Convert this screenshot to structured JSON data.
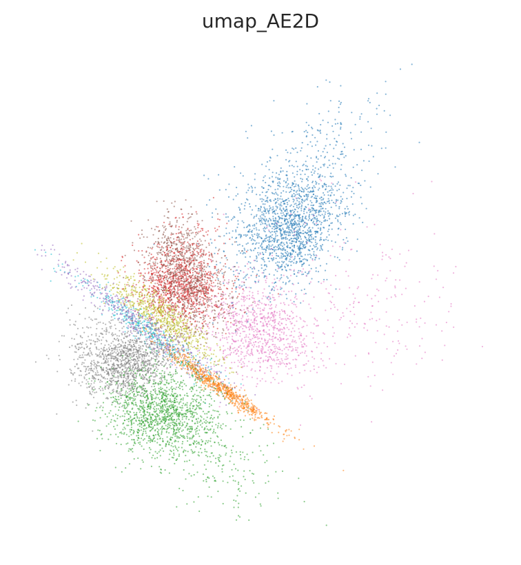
{
  "chart_data": {
    "type": "scatter",
    "title": "umap_AE2D",
    "xlabel": "",
    "ylabel": "",
    "axes_visible": false,
    "grid": false,
    "legend": "none",
    "point_alpha": 0.55,
    "series": [
      {
        "color": "#1f77b4",
        "clusters": [
          {
            "cx": 0.56,
            "cy": 0.35,
            "sx": 0.07,
            "sy": 0.05,
            "rot": -0.85,
            "n": 1500
          },
          {
            "cx": 0.6,
            "cy": 0.22,
            "sx": 0.11,
            "sy": 0.06,
            "rot": -0.7,
            "n": 260
          }
        ]
      },
      {
        "color": "#e377c2",
        "clusters": [
          {
            "cx": 0.49,
            "cy": 0.57,
            "sx": 0.06,
            "sy": 0.05,
            "rot": 0.6,
            "n": 900
          },
          {
            "cx": 0.72,
            "cy": 0.5,
            "sx": 0.12,
            "sy": 0.09,
            "rot": 0.3,
            "n": 240
          }
        ]
      },
      {
        "color": "#d62728",
        "clusters": [
          {
            "cx": 0.32,
            "cy": 0.48,
            "sx": 0.05,
            "sy": 0.035,
            "rot": 0.2,
            "n": 900
          },
          {
            "cx": 0.33,
            "cy": 0.42,
            "sx": 0.035,
            "sy": 0.05,
            "rot": 0.4,
            "n": 250
          }
        ]
      },
      {
        "color": "#8c564b",
        "clusters": [
          {
            "cx": 0.34,
            "cy": 0.47,
            "sx": 0.06,
            "sy": 0.04,
            "rot": 1.0,
            "n": 700
          },
          {
            "cx": 0.31,
            "cy": 0.38,
            "sx": 0.03,
            "sy": 0.04,
            "rot": 0.3,
            "n": 200
          }
        ]
      },
      {
        "color": "#bcbd22",
        "clusters": [
          {
            "cx": 0.28,
            "cy": 0.54,
            "sx": 0.075,
            "sy": 0.018,
            "rot": 0.65,
            "n": 700
          }
        ]
      },
      {
        "color": "#17becf",
        "clusters": [
          {
            "cx": 0.25,
            "cy": 0.57,
            "sx": 0.1,
            "sy": 0.012,
            "rot": 0.62,
            "n": 400
          }
        ]
      },
      {
        "color": "#9467bd",
        "clusters": [
          {
            "cx": 0.24,
            "cy": 0.56,
            "sx": 0.12,
            "sy": 0.014,
            "rot": 0.62,
            "n": 500
          }
        ]
      },
      {
        "color": "#7f7f7f",
        "clusters": [
          {
            "cx": 0.2,
            "cy": 0.64,
            "sx": 0.05,
            "sy": 0.035,
            "rot": -0.2,
            "n": 1100
          },
          {
            "cx": 0.15,
            "cy": 0.6,
            "sx": 0.05,
            "sy": 0.04,
            "rot": 0.0,
            "n": 200
          }
        ]
      },
      {
        "color": "#ff7f0e",
        "clusters": [
          {
            "cx": 0.41,
            "cy": 0.69,
            "sx": 0.075,
            "sy": 0.008,
            "rot": 0.6,
            "n": 700
          }
        ]
      },
      {
        "color": "#2ca02c",
        "clusters": [
          {
            "cx": 0.28,
            "cy": 0.74,
            "sx": 0.06,
            "sy": 0.045,
            "rot": 0.1,
            "n": 1300
          },
          {
            "cx": 0.4,
            "cy": 0.83,
            "sx": 0.08,
            "sy": 0.05,
            "rot": 0.5,
            "n": 240
          }
        ]
      }
    ]
  }
}
